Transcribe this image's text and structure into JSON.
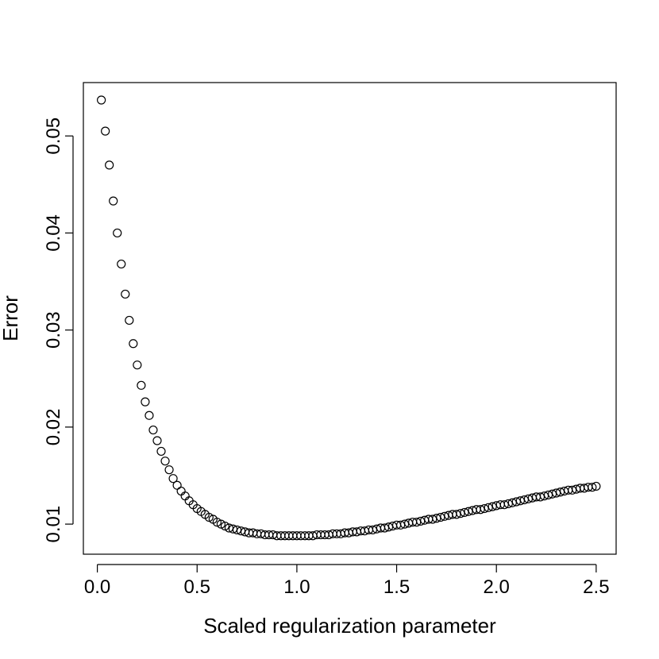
{
  "chart_data": {
    "type": "scatter",
    "title": "",
    "xlabel": "Scaled regularization parameter",
    "ylabel": "Error",
    "xlim": [
      -0.07,
      2.6
    ],
    "ylim": [
      0.0069,
      0.0555
    ],
    "xticks": [
      0.0,
      0.5,
      1.0,
      1.5,
      2.0,
      2.5
    ],
    "xtick_labels": [
      "0.0",
      "0.5",
      "1.0",
      "1.5",
      "2.0",
      "2.5"
    ],
    "yticks": [
      0.01,
      0.02,
      0.03,
      0.04,
      0.05
    ],
    "ytick_labels": [
      "0.01",
      "0.02",
      "0.03",
      "0.04",
      "0.05"
    ],
    "grid": false,
    "marker": "open-circle",
    "point_color": "#000000",
    "series": [
      {
        "x": [
          0.02,
          0.04,
          0.06,
          0.08,
          0.1,
          0.12,
          0.14,
          0.16,
          0.18,
          0.2,
          0.22,
          0.24,
          0.26,
          0.28,
          0.3,
          0.32,
          0.34,
          0.36,
          0.38,
          0.4,
          0.42,
          0.44,
          0.46,
          0.48,
          0.5,
          0.52,
          0.54,
          0.56,
          0.58,
          0.6,
          0.62,
          0.64,
          0.66,
          0.68,
          0.7,
          0.72,
          0.74,
          0.76,
          0.78,
          0.8,
          0.82,
          0.84,
          0.86,
          0.88,
          0.9,
          0.92,
          0.94,
          0.96,
          0.98,
          1.0,
          1.02,
          1.04,
          1.06,
          1.08,
          1.1,
          1.12,
          1.14,
          1.16,
          1.18,
          1.2,
          1.22,
          1.24,
          1.26,
          1.28,
          1.3,
          1.32,
          1.34,
          1.36,
          1.38,
          1.4,
          1.42,
          1.44,
          1.46,
          1.48,
          1.5,
          1.52,
          1.54,
          1.56,
          1.58,
          1.6,
          1.62,
          1.64,
          1.66,
          1.68,
          1.7,
          1.72,
          1.74,
          1.76,
          1.78,
          1.8,
          1.82,
          1.84,
          1.86,
          1.88,
          1.9,
          1.92,
          1.94,
          1.96,
          1.98,
          2.0,
          2.02,
          2.04,
          2.06,
          2.08,
          2.1,
          2.12,
          2.14,
          2.16,
          2.18,
          2.2,
          2.22,
          2.24,
          2.26,
          2.28,
          2.3,
          2.32,
          2.34,
          2.36,
          2.38,
          2.4,
          2.42,
          2.44,
          2.46,
          2.48,
          2.5
        ],
        "y": [
          0.0537,
          0.0505,
          0.047,
          0.0433,
          0.04,
          0.0368,
          0.0337,
          0.031,
          0.0286,
          0.0264,
          0.0243,
          0.0226,
          0.0212,
          0.0197,
          0.0186,
          0.0175,
          0.0165,
          0.0156,
          0.0147,
          0.014,
          0.0134,
          0.0129,
          0.0124,
          0.012,
          0.0116,
          0.0113,
          0.011,
          0.0107,
          0.0105,
          0.0102,
          0.01,
          0.0098,
          0.0096,
          0.0095,
          0.0094,
          0.0093,
          0.0092,
          0.0091,
          0.0091,
          0.009,
          0.009,
          0.0089,
          0.0089,
          0.0089,
          0.0088,
          0.0088,
          0.0088,
          0.0088,
          0.0088,
          0.0088,
          0.0088,
          0.0088,
          0.0088,
          0.0088,
          0.0089,
          0.0089,
          0.0089,
          0.0089,
          0.009,
          0.009,
          0.009,
          0.0091,
          0.0091,
          0.0092,
          0.0092,
          0.0093,
          0.0093,
          0.0094,
          0.0094,
          0.0095,
          0.0096,
          0.0096,
          0.0097,
          0.0098,
          0.0099,
          0.0099,
          0.01,
          0.0101,
          0.0102,
          0.0102,
          0.0103,
          0.0104,
          0.0105,
          0.0105,
          0.0106,
          0.0107,
          0.0108,
          0.0109,
          0.011,
          0.011,
          0.0111,
          0.0112,
          0.0113,
          0.0114,
          0.0115,
          0.0115,
          0.0116,
          0.0117,
          0.0118,
          0.0119,
          0.012,
          0.012,
          0.0121,
          0.0122,
          0.0123,
          0.0124,
          0.0125,
          0.0126,
          0.0127,
          0.0128,
          0.0128,
          0.0129,
          0.013,
          0.0131,
          0.0132,
          0.0133,
          0.0134,
          0.0135,
          0.0135,
          0.0136,
          0.0137,
          0.0137,
          0.0138,
          0.0138,
          0.0139
        ]
      }
    ]
  }
}
